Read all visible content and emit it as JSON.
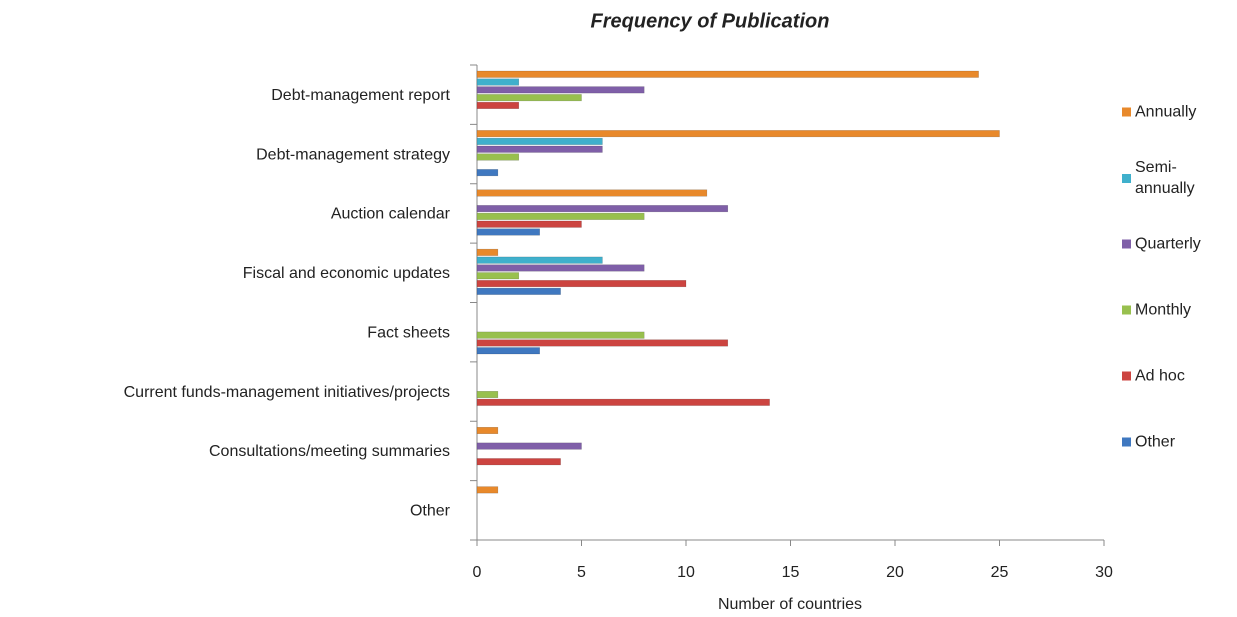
{
  "chart_data": {
    "type": "hbar",
    "title": "Frequency of Publication",
    "x_label": "Number of countries",
    "categories": [
      "Debt-management report",
      "Debt-management strategy",
      "Auction calendar",
      "Fiscal and economic updates",
      "Fact sheets",
      "Current funds-management initiatives/projects",
      "Consultations/meeting summaries",
      "Other"
    ],
    "series": [
      {
        "name": "Annually",
        "color": "#e8892b",
        "values": [
          24,
          25,
          11,
          1,
          0,
          0,
          1,
          1
        ]
      },
      {
        "name": "Semi-annually",
        "color": "#3fb0cc",
        "values": [
          2,
          6,
          0,
          6,
          0,
          0,
          0,
          0
        ]
      },
      {
        "name": "Quarterly",
        "color": "#7f5fa8",
        "values": [
          8,
          6,
          12,
          8,
          0,
          0,
          5,
          0
        ]
      },
      {
        "name": "Monthly",
        "color": "#98c04e",
        "values": [
          5,
          2,
          8,
          2,
          8,
          1,
          0,
          0
        ]
      },
      {
        "name": "Ad hoc",
        "color": "#cc4440",
        "values": [
          2,
          0,
          5,
          10,
          12,
          14,
          4,
          0
        ]
      },
      {
        "name": "Other",
        "color": "#3f78c0",
        "values": [
          0,
          1,
          3,
          4,
          3,
          0,
          0,
          0
        ]
      }
    ],
    "xlim": [
      0,
      30
    ],
    "xticks": [
      0,
      5,
      10,
      15,
      20,
      25,
      30
    ],
    "legend": "right"
  }
}
